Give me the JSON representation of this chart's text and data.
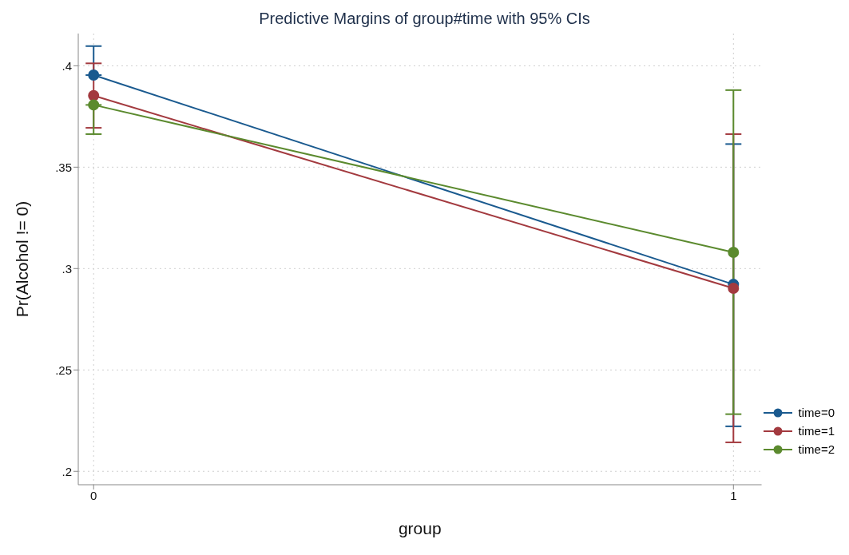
{
  "chart_data": {
    "type": "line",
    "title": "Predictive Margins of group#time with 95% CIs",
    "xlabel": "group",
    "ylabel": "Pr(Alcohol != 0)",
    "x": [
      0,
      1
    ],
    "series": [
      {
        "name": "time=0",
        "color": "#1a5a8f",
        "values": [
          0.3954,
          0.2922
        ],
        "errors": [
          [
            0.3954,
            0.4097
          ],
          [
            0.2222,
            0.3614
          ]
        ]
      },
      {
        "name": "time=1",
        "color": "#a33a3f",
        "values": [
          0.3853,
          0.2903
        ],
        "errors": [
          [
            0.3694,
            0.4012
          ],
          [
            0.2143,
            0.3663
          ]
        ]
      },
      {
        "name": "time=2",
        "color": "#5b8a2e",
        "values": [
          0.3807,
          0.308
        ],
        "errors": [
          [
            0.3663,
            0.3807
          ],
          [
            0.2282,
            0.388
          ]
        ]
      }
    ],
    "xlim": [
      -0.024,
      1.044
    ],
    "xticks": [
      0,
      1
    ],
    "ylim": [
      0.1934,
      0.4159
    ],
    "yticks": [
      {
        "value": 0.2,
        "label": ".2"
      },
      {
        "value": 0.25,
        "label": ".25"
      },
      {
        "value": 0.3,
        "label": ".3"
      },
      {
        "value": 0.35,
        "label": ".35"
      },
      {
        "value": 0.4,
        "label": ".4"
      }
    ],
    "grid": true,
    "legend": "bottom right",
    "marker": "circle",
    "line_style": "solid"
  }
}
